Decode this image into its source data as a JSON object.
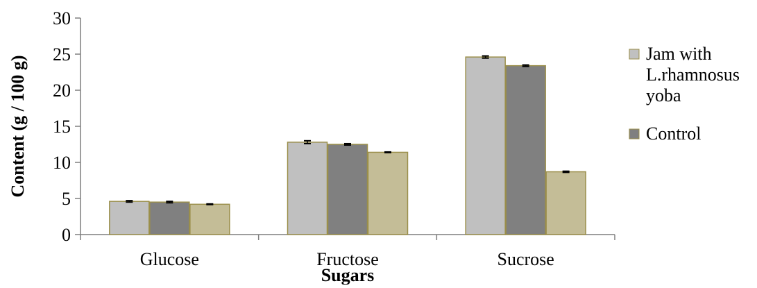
{
  "chart_data": {
    "type": "bar",
    "title": "",
    "xlabel": "Sugars",
    "ylabel": "Content  (g / 100 g)",
    "ylim": [
      0,
      30
    ],
    "yticks": [
      0,
      5,
      10,
      15,
      20,
      25,
      30
    ],
    "categories": [
      "Glucose",
      "Fructose",
      "Sucrose"
    ],
    "series": [
      {
        "name": "Jam with L.rhamnosus yoba",
        "values": [
          4.6,
          12.8,
          24.6
        ],
        "errors": [
          0.1,
          0.2,
          0.15
        ],
        "color": "#c0c0c0"
      },
      {
        "name": "Control",
        "values": [
          4.5,
          12.5,
          23.4
        ],
        "errors": [
          0.1,
          0.1,
          0.1
        ],
        "color": "#808080"
      },
      {
        "values": [
          4.2,
          11.4,
          8.7
        ],
        "errors": [
          0.05,
          0.05,
          0.08
        ],
        "color": "#c4bd97"
      }
    ],
    "bar_edge_color": "#9b8f4b",
    "legend": {
      "position": "right",
      "entries": [
        {
          "lines": [
            "Jam with",
            "L.rhamnosus",
            "yoba"
          ],
          "color": "#c0c0c0"
        },
        {
          "lines": [
            "Control"
          ],
          "color": "#808080"
        }
      ]
    },
    "grid": false
  }
}
